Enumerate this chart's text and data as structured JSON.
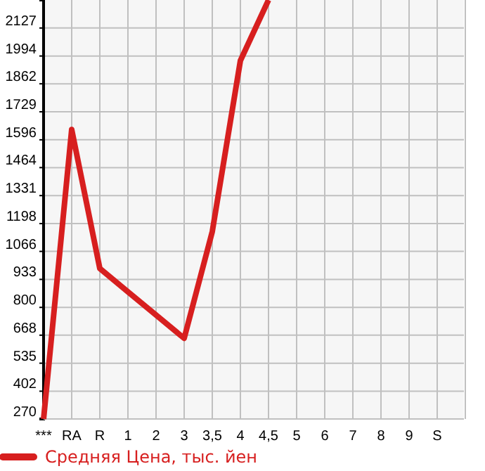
{
  "chart_data": {
    "type": "line",
    "categories": [
      "***",
      "RA",
      "R",
      "1",
      "2",
      "3",
      "3,5",
      "4",
      "4,5",
      "5",
      "6",
      "7",
      "8",
      "9",
      "S"
    ],
    "series": [
      {
        "name": "Средняя Цена, тыс. йен",
        "color": "#d71f1f",
        "values": [
          270,
          1645,
          985,
          874,
          764,
          653,
          1160,
          1972,
          2260,
          null,
          null,
          null,
          null,
          null,
          null
        ]
      }
    ],
    "ylim": [
      270,
      2260
    ],
    "yticks": [
      270,
      402,
      535,
      668,
      800,
      933,
      1066,
      1198,
      1331,
      1464,
      1596,
      1729,
      1862,
      1994,
      2127
    ],
    "grid": true,
    "legend": "bottom",
    "marker": "none",
    "line_style": "solid"
  }
}
